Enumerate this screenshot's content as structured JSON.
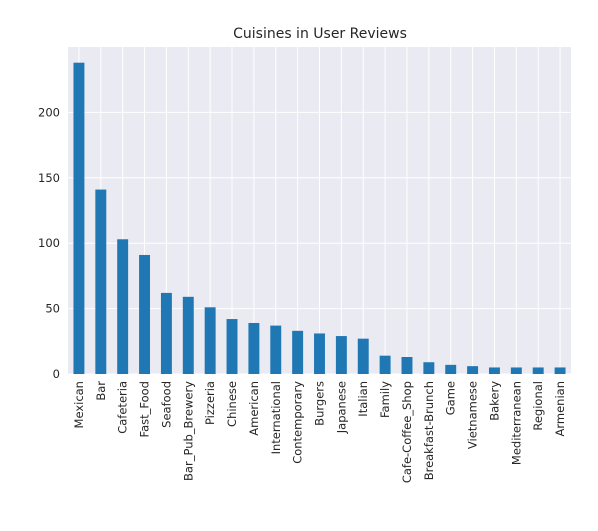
{
  "chart_data": {
    "type": "bar",
    "title": "Cuisines in User Reviews",
    "xlabel": "",
    "ylabel": "",
    "categories": [
      "Mexican",
      "Bar",
      "Cafeteria",
      "Fast_Food",
      "Seafood",
      "Bar_Pub_Brewery",
      "Pizzeria",
      "Chinese",
      "American",
      "International",
      "Contemporary",
      "Burgers",
      "Japanese",
      "Italian",
      "Family",
      "Cafe-Coffee_Shop",
      "Breakfast-Brunch",
      "Game",
      "Vietnamese",
      "Bakery",
      "Mediterranean",
      "Regional",
      "Armenian"
    ],
    "values": [
      238,
      141,
      103,
      91,
      62,
      59,
      51,
      42,
      39,
      37,
      33,
      31,
      29,
      27,
      14,
      13,
      9,
      7,
      6,
      5,
      5,
      5,
      5
    ],
    "ylim": [
      0,
      250
    ],
    "yticks": [
      0,
      50,
      100,
      150,
      200
    ],
    "grid": true,
    "colors": {
      "bar": "#1f77b4",
      "plot_background": "#eaeaf2",
      "grid": "#ffffff"
    }
  }
}
